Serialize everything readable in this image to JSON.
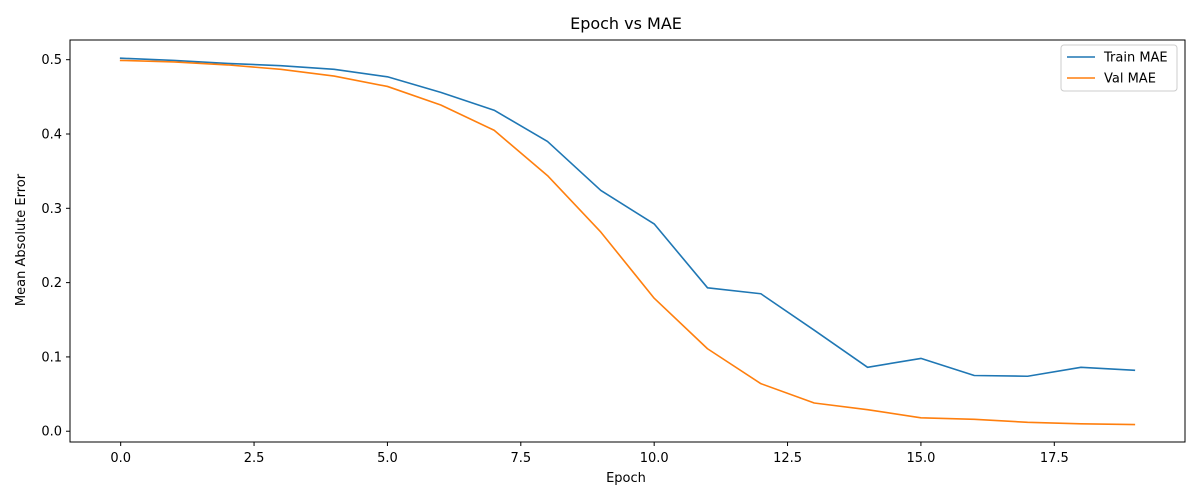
{
  "chart_data": {
    "type": "line",
    "title": "Epoch vs MAE",
    "xlabel": "Epoch",
    "ylabel": "Mean Absolute Error",
    "xlim": [
      -0.95,
      19.95
    ],
    "ylim": [
      -0.0145,
      0.5265
    ],
    "xticks": [
      0.0,
      2.5,
      5.0,
      7.5,
      10.0,
      12.5,
      15.0,
      17.5
    ],
    "xtick_labels": [
      "0.0",
      "2.5",
      "5.0",
      "7.5",
      "10.0",
      "12.5",
      "15.0",
      "17.5"
    ],
    "yticks": [
      0.0,
      0.1,
      0.2,
      0.3,
      0.4,
      0.5
    ],
    "ytick_labels": [
      "0.0",
      "0.1",
      "0.2",
      "0.3",
      "0.4",
      "0.5"
    ],
    "grid": false,
    "legend_position": "top-right",
    "x": [
      0,
      1,
      2,
      3,
      4,
      5,
      6,
      7,
      8,
      9,
      10,
      11,
      12,
      13,
      14,
      15,
      16,
      17,
      18,
      19
    ],
    "series": [
      {
        "name": "Train MAE",
        "color": "#1f77b4",
        "values": [
          0.502,
          0.499,
          0.495,
          0.492,
          0.487,
          0.477,
          0.456,
          0.432,
          0.39,
          0.324,
          0.279,
          0.193,
          0.185,
          0.136,
          0.086,
          0.098,
          0.075,
          0.074,
          0.086,
          0.082
        ]
      },
      {
        "name": "Val MAE",
        "color": "#ff7f0e",
        "values": [
          0.499,
          0.497,
          0.493,
          0.487,
          0.478,
          0.464,
          0.439,
          0.405,
          0.344,
          0.268,
          0.179,
          0.111,
          0.064,
          0.038,
          0.029,
          0.018,
          0.016,
          0.012,
          0.01,
          0.009
        ]
      }
    ]
  }
}
